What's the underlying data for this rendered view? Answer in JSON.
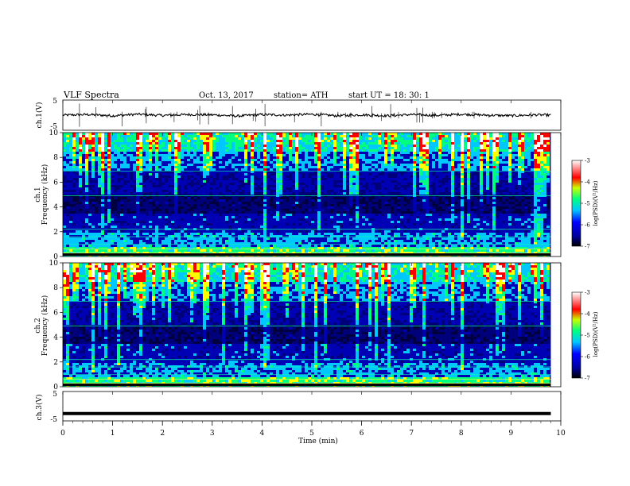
{
  "header": {
    "title": "VLF  Spectra",
    "date": "Oct. 13, 2017",
    "station": "station= ATH",
    "start_ut": "start  UT  =   18: 30: 1"
  },
  "colors": {
    "palette": [
      "#00007a",
      "#0000ff",
      "#00c8ff",
      "#00ff80",
      "#ffff00",
      "#ff0000",
      "#ffffff"
    ]
  },
  "chart_data": [
    {
      "type": "line",
      "name": "ch1-waveform",
      "ylabel": "ch.1(V)",
      "ylim": [
        -5,
        5
      ],
      "yticks": [
        "5",
        "-5"
      ],
      "x": [
        0,
        0.5,
        1,
        1.5,
        2,
        2.5,
        3,
        3.5,
        4,
        4.5,
        5,
        5.5,
        6,
        6.5,
        7,
        7.5,
        8,
        8.5,
        9,
        9.5,
        9.8
      ],
      "y": [
        0.0,
        0.2,
        -0.2,
        0.3,
        -0.1,
        0.2,
        0.1,
        -0.3,
        0.2,
        0.0,
        0.3,
        -0.2,
        0.1,
        -0.2,
        0.2,
        -0.1,
        0.3,
        0.0,
        -0.2,
        0.1,
        0.0
      ]
    },
    {
      "type": "heatmap",
      "name": "ch1-spectrogram",
      "ylabel": "ch.1\nFrequency  (kHz)",
      "ylim": [
        0,
        10
      ],
      "yticks": [
        "0",
        "2",
        "4",
        "6",
        "8",
        "10"
      ],
      "colorbar": {
        "label": "log(PSD)(V²/Hz)",
        "range": [
          -7,
          -3
        ],
        "ticks": [
          "-3",
          "-4",
          "-5",
          "-6",
          "-7"
        ]
      }
    },
    {
      "type": "heatmap",
      "name": "ch2-spectrogram",
      "ylabel": "ch.2\nFrequency  (kHz)",
      "ylim": [
        0,
        10
      ],
      "yticks": [
        "0",
        "2",
        "4",
        "6",
        "8",
        "10"
      ],
      "colorbar": {
        "label": "log(PSD)(V²/Hz)",
        "range": [
          -7,
          -3
        ],
        "ticks": [
          "-3",
          "-4",
          "-5",
          "-6",
          "-7"
        ]
      }
    },
    {
      "type": "line",
      "name": "ch3-waveform",
      "ylabel": "ch.3(V)",
      "ylim": [
        -5,
        5
      ],
      "yticks": [
        "5",
        "-5"
      ],
      "x": [
        0,
        9.8
      ],
      "y": [
        -2.5,
        -2.5
      ]
    }
  ],
  "xaxis": {
    "label": "Time  (min)",
    "ticks": [
      "0",
      "1",
      "2",
      "3",
      "4",
      "5",
      "6",
      "7",
      "8",
      "9",
      "10"
    ],
    "range": [
      0,
      10
    ],
    "data_end": 9.8
  }
}
